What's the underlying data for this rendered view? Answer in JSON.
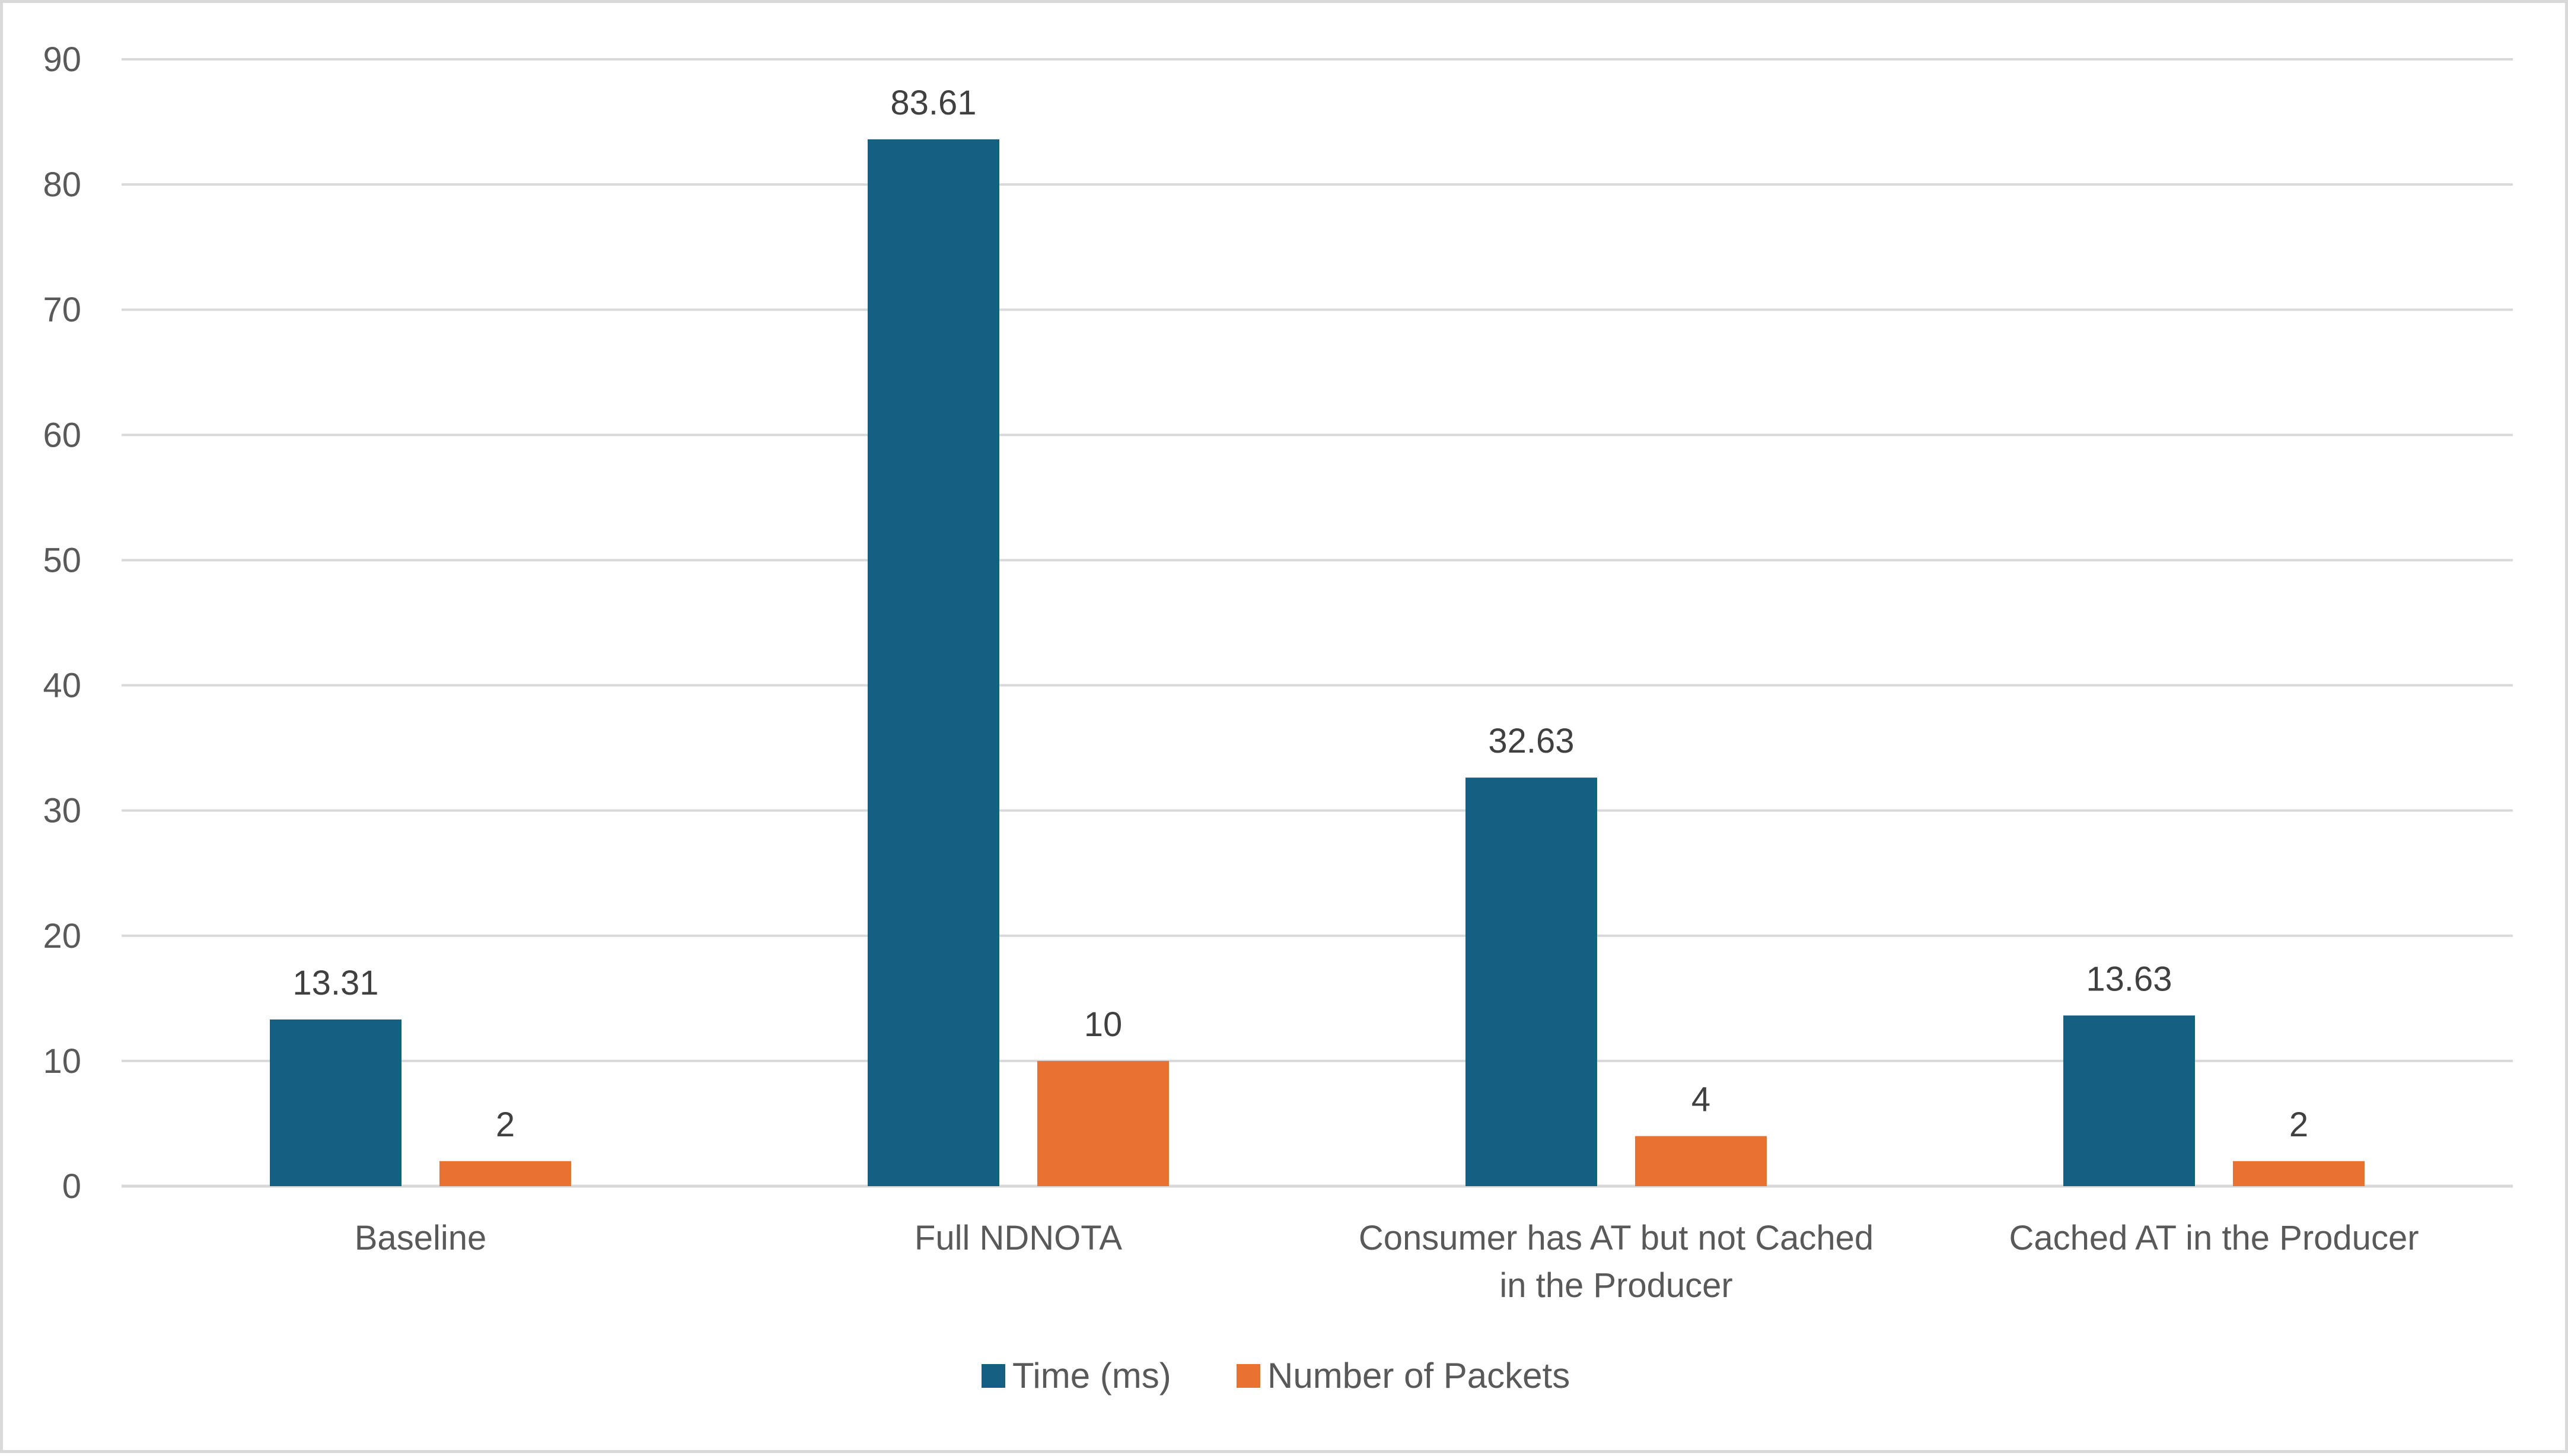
{
  "chart_data": {
    "type": "bar",
    "categories": [
      [
        "Baseline"
      ],
      [
        "Full NDNOTA"
      ],
      [
        "Consumer has AT but not Cached",
        "in the Producer"
      ],
      [
        "Cached AT in the Producer"
      ]
    ],
    "series": [
      {
        "name": "Time (ms)",
        "values": [
          13.31,
          83.61,
          32.63,
          13.63
        ],
        "labels": [
          "13.31",
          "83.61",
          "32.63",
          "13.63"
        ],
        "color": "#156082"
      },
      {
        "name": "Number of Packets",
        "values": [
          2,
          10,
          4,
          2
        ],
        "labels": [
          "2",
          "10",
          "4",
          "2"
        ],
        "color": "#e97132"
      }
    ],
    "title": "",
    "xlabel": "",
    "ylabel": "",
    "ylim": [
      0,
      90
    ],
    "yticks": [
      0,
      10,
      20,
      30,
      40,
      50,
      60,
      70,
      80,
      90
    ],
    "grid": true,
    "legend_position": "bottom"
  }
}
